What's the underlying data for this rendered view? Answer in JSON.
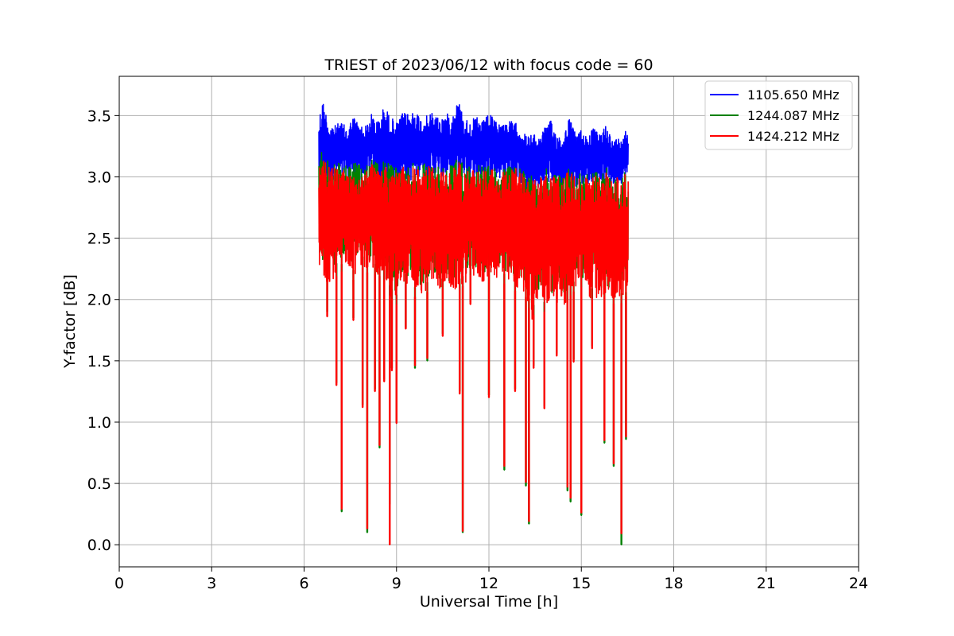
{
  "chart_data": {
    "type": "line",
    "title": "TRIEST of 2023/06/12 with focus code = 60",
    "xlabel": "Universal Time [h]",
    "ylabel": "Y-factor [dB]",
    "xlim": [
      0,
      24
    ],
    "ylim": [
      -0.18,
      3.82
    ],
    "x_ticks": [
      0,
      3,
      6,
      9,
      12,
      15,
      18,
      21,
      24
    ],
    "y_ticks": [
      0.0,
      0.5,
      1.0,
      1.5,
      2.0,
      2.5,
      3.0,
      3.5
    ],
    "y_tick_labels": [
      "0.0",
      "0.5",
      "1.0",
      "1.5",
      "2.0",
      "2.5",
      "3.0",
      "3.5"
    ],
    "grid": true,
    "legend_position": "top-right",
    "data_range_x": [
      6.48,
      16.52
    ],
    "series": [
      {
        "name": "1105.650 MHz",
        "color": "#0000ff",
        "x": [
          6.5,
          6.6,
          6.8,
          7.0,
          7.2,
          7.4,
          7.6,
          7.8,
          8.0,
          8.2,
          8.4,
          8.6,
          8.8,
          9.0,
          9.2,
          9.4,
          9.6,
          9.8,
          10.0,
          10.2,
          10.4,
          10.6,
          10.8,
          11.0,
          11.2,
          11.4,
          11.6,
          11.8,
          12.0,
          12.2,
          12.4,
          12.6,
          12.8,
          13.0,
          13.2,
          13.4,
          13.6,
          13.8,
          14.0,
          14.2,
          14.4,
          14.6,
          14.8,
          15.0,
          15.2,
          15.4,
          15.6,
          15.8,
          16.0,
          16.2,
          16.4,
          16.5
        ],
        "upper": [
          3.52,
          3.64,
          3.45,
          3.42,
          3.45,
          3.4,
          3.5,
          3.43,
          3.42,
          3.52,
          3.46,
          3.58,
          3.5,
          3.44,
          3.52,
          3.52,
          3.56,
          3.48,
          3.5,
          3.54,
          3.48,
          3.52,
          3.5,
          3.64,
          3.48,
          3.46,
          3.49,
          3.45,
          3.52,
          3.46,
          3.44,
          3.46,
          3.45,
          3.42,
          3.34,
          3.35,
          3.33,
          3.4,
          3.46,
          3.36,
          3.32,
          3.49,
          3.36,
          3.39,
          3.34,
          3.4,
          3.34,
          3.45,
          3.3,
          3.32,
          3.39,
          3.39
        ],
        "lower": [
          2.86,
          2.9,
          2.94,
          3.0,
          2.96,
          2.98,
          3.0,
          2.95,
          2.97,
          3.0,
          2.92,
          2.95,
          2.94,
          2.97,
          3.0,
          2.96,
          2.98,
          3.02,
          2.97,
          2.99,
          2.97,
          2.98,
          3.0,
          2.98,
          3.01,
          2.98,
          2.99,
          2.99,
          3.01,
          3.0,
          2.98,
          2.98,
          2.97,
          2.94,
          2.86,
          2.85,
          2.9,
          2.92,
          2.95,
          2.93,
          2.88,
          2.92,
          2.92,
          2.95,
          2.94,
          2.96,
          2.95,
          2.94,
          2.93,
          2.94,
          2.96,
          2.95
        ]
      },
      {
        "name": "1244.087 MHz",
        "color": "#008000",
        "x": [
          6.5,
          6.6,
          6.8,
          7.0,
          7.2,
          7.4,
          7.6,
          7.8,
          8.0,
          8.2,
          8.4,
          8.6,
          8.8,
          9.0,
          9.2,
          9.4,
          9.6,
          9.8,
          10.0,
          10.2,
          10.4,
          10.6,
          10.8,
          11.0,
          11.2,
          11.4,
          11.6,
          11.8,
          12.0,
          12.2,
          12.4,
          12.6,
          12.8,
          13.0,
          13.2,
          13.4,
          13.6,
          13.8,
          14.0,
          14.2,
          14.4,
          14.6,
          14.8,
          15.0,
          15.2,
          15.4,
          15.6,
          15.8,
          16.0,
          16.2,
          16.4,
          16.5
        ],
        "upper": [
          3.18,
          3.22,
          3.14,
          3.1,
          3.12,
          3.08,
          3.12,
          3.1,
          3.08,
          3.15,
          3.1,
          3.16,
          3.1,
          3.08,
          3.12,
          3.1,
          3.14,
          3.1,
          3.12,
          3.14,
          3.1,
          3.12,
          3.12,
          3.16,
          3.1,
          3.08,
          3.1,
          3.08,
          3.12,
          3.08,
          3.06,
          3.08,
          3.1,
          3.08,
          3.02,
          3.04,
          3.02,
          3.06,
          3.08,
          3.04,
          3.02,
          3.1,
          3.04,
          3.06,
          3.02,
          3.06,
          3.04,
          3.08,
          3.0,
          3.02,
          3.05,
          3.05
        ],
        "lower": [
          2.29,
          2.3,
          2.2,
          2.3,
          2.28,
          2.36,
          2.24,
          2.4,
          2.3,
          2.3,
          2.28,
          2.24,
          2.1,
          2.04,
          2.24,
          2.18,
          2.1,
          2.12,
          2.14,
          2.22,
          2.16,
          2.18,
          2.12,
          2.16,
          2.2,
          2.28,
          2.24,
          2.2,
          2.28,
          2.26,
          2.22,
          2.2,
          2.14,
          2.18,
          2.1,
          1.92,
          2.06,
          1.98,
          2.04,
          2.06,
          2.0,
          2.1,
          2.16,
          2.18,
          2.06,
          2.1,
          2.08,
          2.12,
          2.05,
          2.04,
          2.06,
          2.06
        ],
        "dips": [
          [
            6.75,
            1.9
          ],
          [
            7.05,
            1.32
          ],
          [
            7.22,
            0.27
          ],
          [
            7.6,
            1.85
          ],
          [
            7.9,
            1.14
          ],
          [
            8.05,
            0.1
          ],
          [
            8.3,
            1.27
          ],
          [
            8.45,
            0.79
          ],
          [
            8.6,
            1.35
          ],
          [
            8.78,
            0.33
          ],
          [
            8.85,
            1.44
          ],
          [
            9.0,
            1.01
          ],
          [
            9.3,
            1.77
          ],
          [
            9.6,
            1.44
          ],
          [
            10.0,
            1.5
          ],
          [
            10.5,
            1.72
          ],
          [
            11.05,
            1.25
          ],
          [
            11.15,
            0.1
          ],
          [
            11.4,
            1.98
          ],
          [
            12.0,
            1.22
          ],
          [
            12.5,
            0.61
          ],
          [
            12.85,
            1.27
          ],
          [
            13.2,
            0.48
          ],
          [
            13.3,
            0.17
          ],
          [
            13.45,
            1.46
          ],
          [
            13.8,
            1.13
          ],
          [
            14.2,
            1.56
          ],
          [
            14.55,
            0.44
          ],
          [
            14.65,
            0.35
          ],
          [
            14.75,
            1.51
          ],
          [
            15.0,
            0.24
          ],
          [
            15.35,
            1.62
          ],
          [
            15.75,
            0.83
          ],
          [
            16.05,
            0.64
          ],
          [
            16.3,
            0.0
          ],
          [
            16.45,
            0.86
          ]
        ]
      },
      {
        "name": "1424.212 MHz",
        "color": "#ff0000",
        "x": [
          6.5,
          6.6,
          6.8,
          7.0,
          7.2,
          7.4,
          7.6,
          7.8,
          8.0,
          8.2,
          8.4,
          8.6,
          8.8,
          9.0,
          9.2,
          9.4,
          9.6,
          9.8,
          10.0,
          10.2,
          10.4,
          10.6,
          10.8,
          11.0,
          11.2,
          11.4,
          11.6,
          11.8,
          12.0,
          12.2,
          12.4,
          12.6,
          12.8,
          13.0,
          13.2,
          13.4,
          13.6,
          13.8,
          14.0,
          14.2,
          14.4,
          14.6,
          14.8,
          15.0,
          15.2,
          15.4,
          15.6,
          15.8,
          16.0,
          16.2,
          16.4,
          16.5
        ],
        "upper": [
          3.12,
          3.14,
          3.1,
          3.08,
          3.1,
          3.04,
          3.08,
          3.06,
          3.04,
          3.1,
          3.06,
          3.12,
          3.06,
          3.05,
          3.1,
          3.06,
          3.1,
          3.06,
          3.08,
          3.1,
          3.06,
          3.08,
          3.1,
          3.12,
          3.08,
          3.06,
          3.08,
          3.06,
          3.1,
          3.06,
          3.04,
          3.06,
          3.08,
          3.06,
          3.0,
          3.0,
          2.98,
          3.02,
          3.04,
          3.0,
          2.98,
          3.06,
          3.0,
          3.02,
          2.98,
          3.02,
          3.0,
          3.04,
          2.98,
          3.0,
          3.02,
          3.02
        ],
        "lower": [
          2.18,
          2.16,
          2.14,
          2.18,
          2.22,
          2.3,
          2.16,
          2.3,
          2.22,
          2.22,
          2.2,
          2.16,
          2.02,
          1.96,
          2.16,
          2.1,
          2.02,
          2.04,
          2.06,
          2.14,
          2.08,
          2.1,
          2.04,
          2.08,
          2.12,
          2.2,
          2.16,
          2.12,
          2.2,
          2.18,
          2.14,
          2.12,
          2.06,
          2.1,
          2.02,
          1.84,
          1.98,
          1.9,
          1.96,
          1.98,
          1.92,
          2.02,
          2.08,
          2.1,
          1.98,
          2.02,
          2.0,
          2.04,
          1.97,
          1.96,
          1.98,
          2.07
        ],
        "dips": [
          [
            6.75,
            1.86
          ],
          [
            7.05,
            1.3
          ],
          [
            7.22,
            0.29
          ],
          [
            7.6,
            1.83
          ],
          [
            7.9,
            1.12
          ],
          [
            8.05,
            0.13
          ],
          [
            8.3,
            1.25
          ],
          [
            8.45,
            0.81
          ],
          [
            8.6,
            1.33
          ],
          [
            8.78,
            0.0
          ],
          [
            8.85,
            1.42
          ],
          [
            9.0,
            0.99
          ],
          [
            9.3,
            1.76
          ],
          [
            9.6,
            1.46
          ],
          [
            10.0,
            1.52
          ],
          [
            10.5,
            1.7
          ],
          [
            11.05,
            1.23
          ],
          [
            11.15,
            0.11
          ],
          [
            11.4,
            1.96
          ],
          [
            12.0,
            1.2
          ],
          [
            12.5,
            0.64
          ],
          [
            12.85,
            1.25
          ],
          [
            13.2,
            0.51
          ],
          [
            13.3,
            0.19
          ],
          [
            13.45,
            1.44
          ],
          [
            13.8,
            1.11
          ],
          [
            14.2,
            1.54
          ],
          [
            14.55,
            0.47
          ],
          [
            14.65,
            0.38
          ],
          [
            14.75,
            1.49
          ],
          [
            15.0,
            0.26
          ],
          [
            15.35,
            1.6
          ],
          [
            15.75,
            0.85
          ],
          [
            16.05,
            0.66
          ],
          [
            16.3,
            0.09
          ],
          [
            16.45,
            0.88
          ]
        ]
      }
    ]
  }
}
